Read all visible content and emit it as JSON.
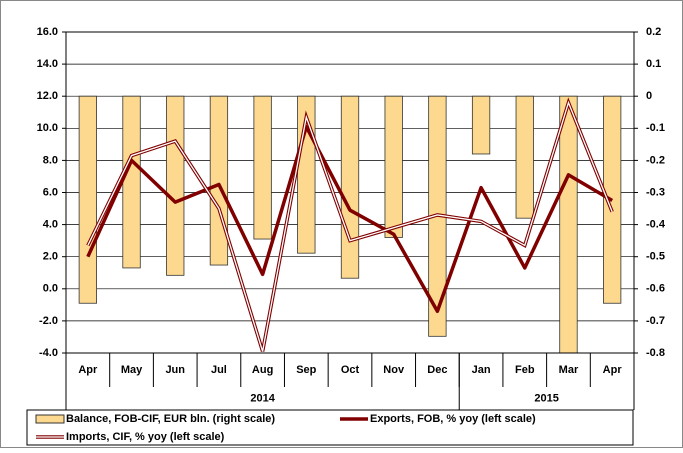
{
  "chart_data": {
    "type": "bar_line",
    "categories": [
      "Apr",
      "May",
      "Jun",
      "Jul",
      "Aug",
      "Sep",
      "Oct",
      "Nov",
      "Dec",
      "Jan",
      "Feb",
      "Mar",
      "Apr"
    ],
    "groups": [
      {
        "label": "2014",
        "count": 9
      },
      {
        "label": "2015",
        "count": 4
      }
    ],
    "series": [
      {
        "name": "Balance, FOB-CIF, EUR bln. (right scale)",
        "type": "bar",
        "axis": "y2",
        "color": "#fcd98f",
        "values": [
          -0.645,
          -0.535,
          -0.558,
          -0.526,
          -0.445,
          -0.489,
          -0.567,
          -0.44,
          -0.748,
          -0.18,
          -0.38,
          -0.8,
          -0.645
        ]
      },
      {
        "name": "Exports, FOB, % yoy (left scale)",
        "type": "line",
        "color": "#800000",
        "values": [
          2.0,
          8.0,
          5.4,
          6.5,
          0.9,
          10.1,
          4.9,
          3.4,
          -1.4,
          6.3,
          1.3,
          7.1,
          5.5
        ]
      },
      {
        "name": "Imports, CIF, % yoy (left scale)",
        "type": "double-line",
        "color": "#800000",
        "values": [
          2.7,
          8.3,
          9.2,
          5.0,
          -3.9,
          10.7,
          3.0,
          3.8,
          4.6,
          4.2,
          2.7,
          11.6,
          4.8
        ]
      }
    ],
    "ylim": [
      -4,
      16
    ],
    "yticks": [
      {
        "value": -4,
        "label": "-4.0"
      },
      {
        "value": -2,
        "label": "-2.0"
      },
      {
        "value": 0,
        "label": "0.0"
      },
      {
        "value": 2,
        "label": "2.0"
      },
      {
        "value": 4,
        "label": "4.0"
      },
      {
        "value": 6,
        "label": "6.0"
      },
      {
        "value": 8,
        "label": "8.0"
      },
      {
        "value": 10,
        "label": "10.0"
      },
      {
        "value": 12,
        "label": "12.0"
      },
      {
        "value": 14,
        "label": "14.0"
      },
      {
        "value": 16,
        "label": "16.0"
      }
    ],
    "y2lim": [
      -0.8,
      0.2
    ],
    "y2ticks": [
      -0.8,
      -0.7,
      -0.6,
      -0.5,
      -0.4,
      -0.3,
      -0.2,
      -0.1,
      0,
      0.1,
      0.2
    ],
    "grid": true
  }
}
